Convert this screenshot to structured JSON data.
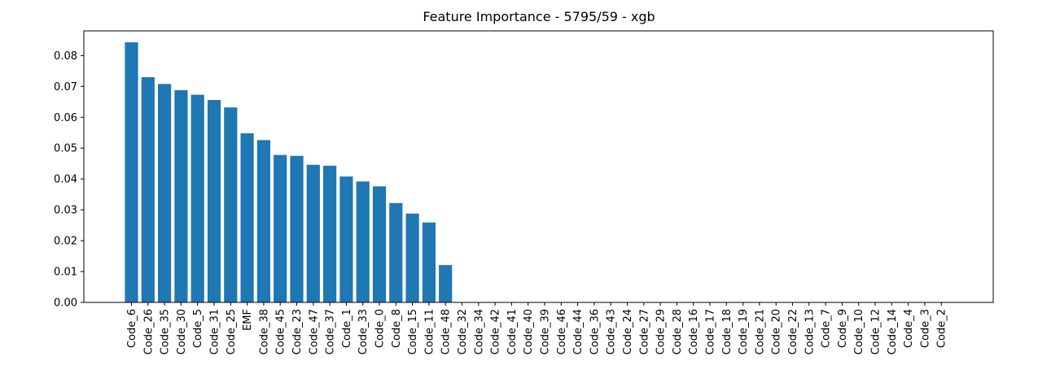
{
  "chart_data": {
    "type": "bar",
    "title": "Feature Importance - 5795/59 - xgb",
    "xlabel": "",
    "ylabel": "",
    "ylim": [
      0,
      0.088
    ],
    "yticks": [
      "0.00",
      "0.01",
      "0.02",
      "0.03",
      "0.04",
      "0.05",
      "0.06",
      "0.07",
      "0.08"
    ],
    "grid": false,
    "bar_color": "#1f77b4",
    "categories": [
      "Code_6",
      "Code_26",
      "Code_35",
      "Code_30",
      "Code_5",
      "Code_31",
      "Code_25",
      "EMF",
      "Code_38",
      "Code_45",
      "Code_23",
      "Code_47",
      "Code_37",
      "Code_1",
      "Code_33",
      "Code_0",
      "Code_8",
      "Code_15",
      "Code_11",
      "Code_48",
      "Code_32",
      "Code_34",
      "Code_42",
      "Code_41",
      "Code_40",
      "Code_39",
      "Code_46",
      "Code_44",
      "Code_36",
      "Code_43",
      "Code_24",
      "Code_27",
      "Code_29",
      "Code_28",
      "Code_16",
      "Code_17",
      "Code_18",
      "Code_19",
      "Code_21",
      "Code_20",
      "Code_22",
      "Code_13",
      "Code_7",
      "Code_9",
      "Code_10",
      "Code_12",
      "Code_14",
      "Code_4",
      "Code_3",
      "Code_2"
    ],
    "values": [
      0.0843,
      0.073,
      0.0708,
      0.0688,
      0.0673,
      0.0656,
      0.0632,
      0.0548,
      0.0526,
      0.0478,
      0.0475,
      0.0446,
      0.0443,
      0.0408,
      0.0392,
      0.0376,
      0.0322,
      0.0288,
      0.0259,
      0.0121,
      0,
      0,
      0,
      0,
      0,
      0,
      0,
      0,
      0,
      0,
      0,
      0,
      0,
      0,
      0,
      0,
      0,
      0,
      0,
      0,
      0,
      0,
      0,
      0,
      0,
      0,
      0,
      0,
      0,
      0
    ]
  }
}
